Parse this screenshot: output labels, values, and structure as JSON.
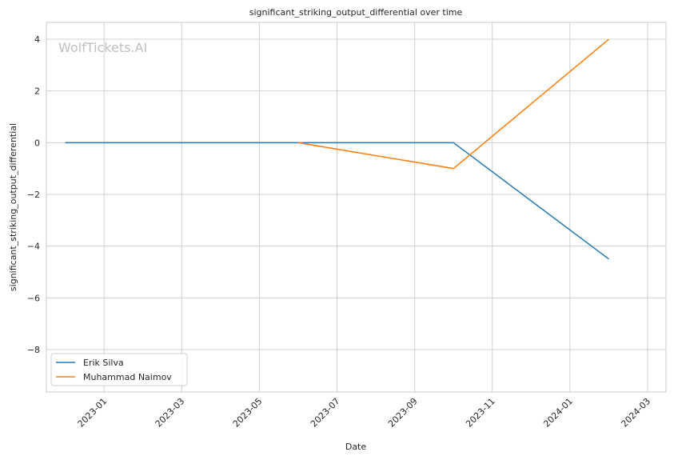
{
  "chart_data": {
    "type": "line",
    "title": "significant_striking_output_differential over time",
    "x_label": "Date",
    "y_label": "significant_striking_output_differential",
    "watermark": "WolfTickets.AI",
    "series": [
      {
        "name": "Erik Silva",
        "color": "#1f77b4",
        "x": [
          "2022-12",
          "2023-10",
          "2024-02"
        ],
        "values": [
          0,
          0,
          -4.5
        ]
      },
      {
        "name": "Muhammad Naimov",
        "color": "#ff7f0e",
        "x": [
          "2023-06",
          "2023-10",
          "2024-02"
        ],
        "values": [
          0,
          -1,
          4
        ]
      }
    ],
    "xlim": [
      "2022-11",
      "2024-03"
    ],
    "xticks": [
      "2023-01",
      "2023-03",
      "2023-05",
      "2023-07",
      "2023-09",
      "2023-11",
      "2024-01",
      "2024-03"
    ],
    "ylim": [
      -9.64,
      4.65
    ],
    "yticks": [
      {
        "value": -8,
        "label": "−8"
      },
      {
        "value": -6,
        "label": "−6"
      },
      {
        "value": -4,
        "label": "−4"
      },
      {
        "value": -2,
        "label": "−2"
      },
      0,
      2,
      4
    ],
    "grid": true,
    "legend": "lower left"
  }
}
